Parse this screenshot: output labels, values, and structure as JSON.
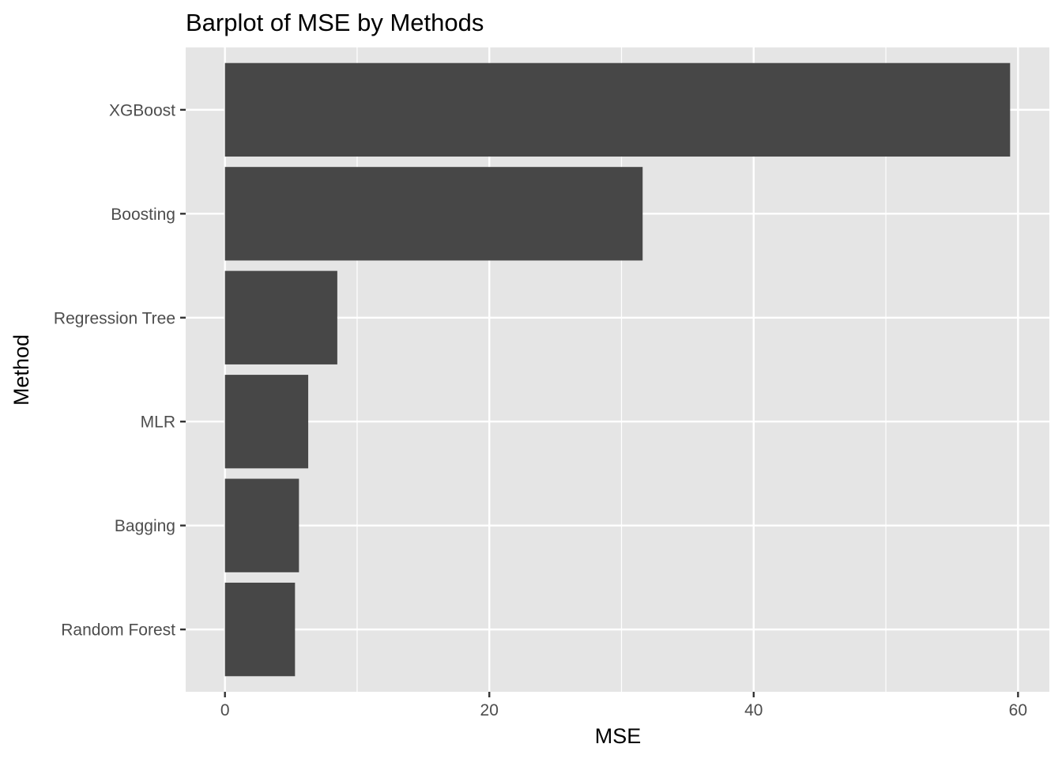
{
  "chart_data": {
    "type": "bar",
    "orientation": "horizontal",
    "title": "Barplot of MSE by Methods",
    "xlabel": "MSE",
    "ylabel": "Method",
    "categories": [
      "XGBoost",
      "Boosting",
      "Regression Tree",
      "MLR",
      "Bagging",
      "Random Forest"
    ],
    "values": [
      59.4,
      31.6,
      8.5,
      6.3,
      5.6,
      5.3
    ],
    "xlim": [
      -2.97,
      62.37
    ],
    "xticks": [
      "0",
      "20",
      "40",
      "60"
    ],
    "xtick_values": [
      0,
      20,
      40,
      60
    ],
    "grid": true,
    "colors": {
      "bar": "#474747",
      "panel": "#e5e5e5",
      "grid": "#ffffff",
      "tick_text": "#4d4d4d",
      "tick_mark": "#333333"
    }
  }
}
